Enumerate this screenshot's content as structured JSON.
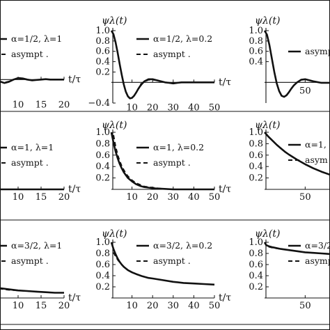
{
  "chart_data": [
    {
      "type": "line",
      "row": 0,
      "col": 0,
      "ylabel": "",
      "xlabel": "t/τ",
      "xlim": [
        0,
        20
      ],
      "ylim": [
        -0.4,
        1.0
      ],
      "xticks": [
        "10",
        "15",
        "20"
      ],
      "xtick_values": [
        10,
        15,
        20
      ],
      "yticks": [],
      "ytick_values": [],
      "series": [
        {
          "name": "α=1/2, λ=1",
          "style": "solid",
          "x": [
            0,
            1,
            2,
            3,
            4,
            5,
            6,
            7,
            8,
            9,
            10,
            11,
            12,
            13,
            14,
            15,
            16,
            17,
            18,
            19,
            20
          ],
          "y": [
            1.0,
            0.45,
            0.1,
            0.06,
            0.08,
            0.03,
            -0.05,
            -0.09,
            -0.06,
            0.0,
            0.04,
            0.03,
            0.0,
            -0.02,
            -0.01,
            0.0,
            0.01,
            0.0,
            0.0,
            0.0,
            0.0
          ]
        },
        {
          "name": "asympt .",
          "style": "dashed",
          "x": [
            3,
            4,
            5,
            6,
            7,
            8,
            9,
            10,
            11,
            12,
            13,
            14,
            15,
            16,
            17,
            18,
            19,
            20
          ],
          "y": [
            0.03,
            0.06,
            0.02,
            -0.05,
            -0.08,
            -0.05,
            0.0,
            0.03,
            0.02,
            0.0,
            -0.02,
            -0.01,
            0.0,
            0.01,
            0.0,
            0.0,
            0.0,
            0.0
          ]
        }
      ]
    },
    {
      "type": "line",
      "row": 0,
      "col": 1,
      "ylabel": "ψλ(t)",
      "xlabel": "t/τ",
      "xlim": [
        0,
        50
      ],
      "ylim": [
        -0.4,
        1.0
      ],
      "xticks": [
        "10",
        "20",
        "30",
        "40",
        "50"
      ],
      "xtick_values": [
        10,
        20,
        30,
        40,
        50
      ],
      "yticks": [
        "1.0",
        "0.8",
        "0.6",
        "0.4",
        "0.2",
        "−0.4"
      ],
      "ytick_values": [
        1.0,
        0.8,
        0.6,
        0.4,
        0.2,
        -0.4
      ],
      "series": [
        {
          "name": "α=1/2, λ=0.2",
          "style": "solid",
          "x": [
            0,
            1,
            2,
            3,
            4,
            5,
            6,
            7,
            8,
            9,
            10,
            11,
            12,
            13,
            14,
            15,
            16,
            18,
            20,
            22,
            24,
            26,
            28,
            30,
            32,
            34,
            36,
            40,
            45,
            50
          ],
          "y": [
            1.0,
            0.93,
            0.78,
            0.58,
            0.36,
            0.15,
            -0.04,
            -0.18,
            -0.27,
            -0.31,
            -0.3,
            -0.26,
            -0.2,
            -0.13,
            -0.07,
            -0.02,
            0.02,
            0.06,
            0.06,
            0.04,
            0.02,
            0.0,
            -0.01,
            -0.02,
            -0.01,
            0.0,
            0.0,
            0.0,
            0.0,
            0.0
          ]
        },
        {
          "name": "asympt .",
          "style": "dashed",
          "x": [
            14,
            16,
            18,
            20,
            22,
            24,
            26,
            28,
            30,
            32,
            34,
            36,
            40,
            45,
            50
          ],
          "y": [
            -0.04,
            0.01,
            0.05,
            0.05,
            0.04,
            0.02,
            0.0,
            -0.01,
            -0.02,
            -0.01,
            0.0,
            0.0,
            0.0,
            0.0,
            0.0
          ]
        }
      ]
    },
    {
      "type": "line",
      "row": 0,
      "col": 2,
      "ylabel": "ψλ(t)",
      "xlabel": "",
      "xlim": [
        0,
        120
      ],
      "ylim": [
        -0.4,
        1.0
      ],
      "xticks": [
        "50"
      ],
      "xtick_values": [
        50
      ],
      "yticks": [
        "1.0",
        "0.8",
        "0.6",
        "0.4"
      ],
      "ytick_values": [
        1.0,
        0.8,
        0.6,
        0.4
      ],
      "series": [
        {
          "name": "asymp",
          "style": "solid",
          "x": [
            0,
            3,
            6,
            9,
            12,
            15,
            18,
            21,
            24,
            27,
            30,
            33,
            36,
            40,
            45,
            50,
            55,
            60,
            70,
            80,
            90,
            100,
            110,
            120
          ],
          "y": [
            1.0,
            0.92,
            0.72,
            0.46,
            0.2,
            -0.02,
            -0.17,
            -0.26,
            -0.28,
            -0.25,
            -0.19,
            -0.12,
            -0.06,
            0.0,
            0.05,
            0.06,
            0.04,
            0.02,
            -0.01,
            -0.01,
            0.0,
            0.0,
            0.0,
            0.0
          ]
        }
      ]
    },
    {
      "type": "line",
      "row": 1,
      "col": 0,
      "ylabel": "",
      "xlabel": "t/τ",
      "xlim": [
        0,
        20
      ],
      "ylim": [
        0,
        1.0
      ],
      "xticks": [
        "10",
        "15",
        "20"
      ],
      "xtick_values": [
        10,
        15,
        20
      ],
      "yticks": [],
      "ytick_values": [],
      "series": [
        {
          "name": "α=1, λ=1",
          "style": "solid",
          "x": [
            0,
            1,
            2,
            3,
            4,
            5,
            6,
            8,
            10,
            12,
            14,
            16,
            18,
            20
          ],
          "y": [
            1.0,
            0.37,
            0.14,
            0.05,
            0.02,
            0.01,
            0.0,
            0.0,
            0.0,
            0.0,
            0.0,
            0.0,
            0.0,
            0.0
          ]
        },
        {
          "name": "asympt .",
          "style": "dashed",
          "x": [
            0,
            2,
            4,
            6,
            8,
            10,
            12,
            14,
            16,
            18,
            20
          ],
          "y": [
            0.0,
            0.0,
            0.0,
            0.0,
            0.0,
            0.0,
            0.0,
            0.0,
            0.0,
            0.0,
            0.0
          ]
        }
      ]
    },
    {
      "type": "line",
      "row": 1,
      "col": 1,
      "ylabel": "ψλ(t)",
      "xlabel": "t/τ",
      "xlim": [
        0,
        50
      ],
      "ylim": [
        0,
        1.0
      ],
      "xticks": [
        "10",
        "20",
        "30",
        "40",
        "50"
      ],
      "xtick_values": [
        10,
        20,
        30,
        40,
        50
      ],
      "yticks": [
        "1.0",
        "0.8",
        "0.6",
        "0.4",
        "0.2"
      ],
      "ytick_values": [
        1.0,
        0.8,
        0.6,
        0.4,
        0.2
      ],
      "series": [
        {
          "name": "α=1, λ=0.2",
          "style": "solid",
          "x": [
            0,
            1,
            2,
            3,
            4,
            5,
            6,
            7,
            8,
            10,
            12,
            14,
            16,
            18,
            20,
            25,
            30,
            40,
            50
          ],
          "y": [
            1.0,
            0.82,
            0.67,
            0.55,
            0.45,
            0.37,
            0.3,
            0.25,
            0.2,
            0.14,
            0.09,
            0.06,
            0.04,
            0.03,
            0.02,
            0.01,
            0.0,
            0.0,
            0.0
          ]
        },
        {
          "name": "asympt .",
          "style": "dashed",
          "x": [
            1,
            2,
            3,
            4,
            5,
            6,
            7,
            8,
            10,
            12,
            14,
            16,
            18,
            20,
            25,
            30,
            40,
            50
          ],
          "y": [
            0.95,
            0.76,
            0.61,
            0.5,
            0.41,
            0.34,
            0.28,
            0.23,
            0.16,
            0.11,
            0.08,
            0.05,
            0.04,
            0.03,
            0.01,
            0.0,
            0.0,
            0.0
          ]
        }
      ]
    },
    {
      "type": "line",
      "row": 1,
      "col": 2,
      "ylabel": "ψλ(t)",
      "xlabel": "",
      "xlim": [
        0,
        120
      ],
      "ylim": [
        0,
        1.0
      ],
      "xticks": [
        "50",
        "100"
      ],
      "xtick_values": [
        50,
        100
      ],
      "yticks": [
        "1.0",
        "0.8",
        "0.6",
        "0.4",
        "0.2"
      ],
      "ytick_values": [
        1.0,
        0.8,
        0.6,
        0.4,
        0.2
      ],
      "series": [
        {
          "name": "α=1,",
          "style": "solid",
          "x": [
            0,
            5,
            10,
            15,
            20,
            25,
            30,
            40,
            50,
            60,
            70,
            80,
            90,
            100,
            110,
            120
          ],
          "y": [
            1.0,
            0.92,
            0.85,
            0.78,
            0.72,
            0.66,
            0.61,
            0.52,
            0.44,
            0.37,
            0.31,
            0.26,
            0.22,
            0.19,
            0.16,
            0.14
          ]
        },
        {
          "name": "asym",
          "style": "dashed",
          "x": [
            5,
            10,
            15,
            20,
            25,
            30,
            40,
            50,
            60,
            70,
            80,
            90,
            100,
            110,
            120
          ],
          "y": [
            0.92,
            0.85,
            0.78,
            0.72,
            0.66,
            0.61,
            0.52,
            0.44,
            0.37,
            0.31,
            0.26,
            0.22,
            0.19,
            0.16,
            0.14
          ]
        }
      ]
    },
    {
      "type": "line",
      "row": 2,
      "col": 0,
      "ylabel": "",
      "xlabel": "t/τ",
      "xlim": [
        0,
        20
      ],
      "ylim": [
        0,
        1.0
      ],
      "xticks": [
        "10",
        "15",
        "20"
      ],
      "xtick_values": [
        10,
        15,
        20
      ],
      "yticks": [],
      "ytick_values": [],
      "series": [
        {
          "name": "α=3/2, λ=1",
          "style": "solid",
          "x": [
            0,
            2,
            4,
            6,
            8,
            10,
            12,
            14,
            16,
            18,
            20
          ],
          "y": [
            0.3,
            0.24,
            0.2,
            0.17,
            0.15,
            0.13,
            0.12,
            0.11,
            0.1,
            0.09,
            0.09
          ]
        },
        {
          "name": "asympt .",
          "style": "dashed",
          "x": [
            0,
            2,
            4,
            6,
            8,
            10,
            12,
            14,
            16,
            18,
            20
          ],
          "y": [
            0.29,
            0.23,
            0.19,
            0.16,
            0.14,
            0.13,
            0.12,
            0.11,
            0.1,
            0.09,
            0.09
          ]
        }
      ]
    },
    {
      "type": "line",
      "row": 2,
      "col": 1,
      "ylabel": "ψλ(t)",
      "xlabel": "t/τ",
      "xlim": [
        0,
        50
      ],
      "ylim": [
        0,
        1.0
      ],
      "xticks": [
        "10",
        "20",
        "30",
        "40",
        "50"
      ],
      "xtick_values": [
        10,
        20,
        30,
        40,
        50
      ],
      "yticks": [
        "1.0",
        "0.8",
        "0.6",
        "0.4",
        "0.2"
      ],
      "ytick_values": [
        1.0,
        0.8,
        0.6,
        0.4,
        0.2
      ],
      "series": [
        {
          "name": "α=3/2, λ=0.2",
          "style": "solid",
          "x": [
            0,
            1,
            2,
            3,
            4,
            5,
            6,
            8,
            10,
            12,
            15,
            18,
            20,
            25,
            30,
            35,
            40,
            45,
            50
          ],
          "y": [
            1.0,
            0.88,
            0.79,
            0.71,
            0.65,
            0.6,
            0.56,
            0.5,
            0.46,
            0.43,
            0.39,
            0.36,
            0.35,
            0.32,
            0.29,
            0.27,
            0.26,
            0.25,
            0.24
          ]
        },
        {
          "name": "asympt .",
          "style": "dashed",
          "x": [
            1,
            2,
            3,
            4,
            5,
            6,
            8,
            10,
            12,
            15
          ],
          "y": [
            0.82,
            0.75,
            0.69,
            0.64,
            0.6,
            0.56,
            0.5,
            0.46,
            0.43,
            0.39
          ]
        }
      ]
    },
    {
      "type": "line",
      "row": 2,
      "col": 2,
      "ylabel": "ψλ(t)",
      "xlabel": "",
      "xlim": [
        0,
        120
      ],
      "ylim": [
        0,
        1.0
      ],
      "xticks": [
        "50",
        "100"
      ],
      "xtick_values": [
        50,
        100
      ],
      "yticks": [
        "1.0",
        "0.8",
        "0.6",
        "0.4",
        "0.2"
      ],
      "ytick_values": [
        1.0,
        0.8,
        0.6,
        0.4,
        0.2
      ],
      "series": [
        {
          "name": "α=3/2,",
          "style": "solid",
          "x": [
            0,
            2,
            5,
            10,
            20,
            30,
            40,
            50,
            60,
            70,
            80,
            90,
            100,
            110,
            120
          ],
          "y": [
            1.0,
            0.95,
            0.93,
            0.91,
            0.88,
            0.86,
            0.84,
            0.82,
            0.81,
            0.8,
            0.79,
            0.78,
            0.77,
            0.76,
            0.75
          ]
        },
        {
          "name": "asympt",
          "style": "dashed",
          "x": [
            5,
            10,
            20,
            30,
            40,
            50,
            60,
            70,
            80,
            90,
            100,
            110,
            120
          ],
          "y": [
            0.92,
            0.9,
            0.88,
            0.86,
            0.84,
            0.82,
            0.81,
            0.8,
            0.79,
            0.78,
            0.77,
            0.76,
            0.75
          ]
        }
      ]
    }
  ]
}
